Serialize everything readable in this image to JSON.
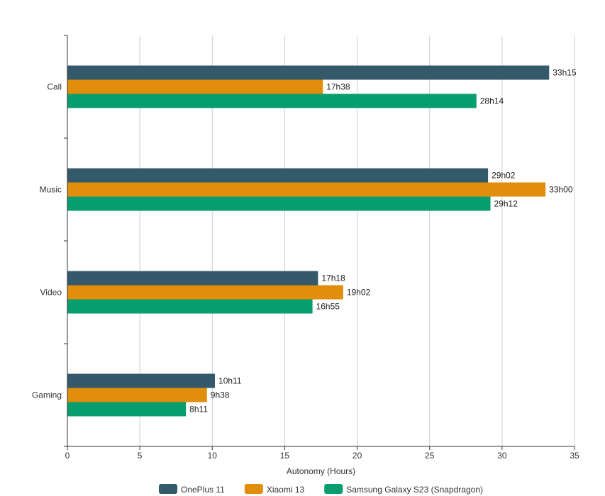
{
  "chart_data": {
    "type": "bar",
    "orientation": "horizontal",
    "categories": [
      "Call",
      "Music",
      "Video",
      "Gaming"
    ],
    "xlabel": "Autonomy (Hours)",
    "xlim": [
      0,
      35
    ],
    "xticks": [
      0,
      5,
      10,
      15,
      20,
      25,
      30,
      35
    ],
    "grid": true,
    "legend_position": "bottom",
    "series": [
      {
        "name": "OnePlus 11",
        "color": "#34596b",
        "values": [
          33.25,
          29.033,
          17.3,
          10.183
        ],
        "labels": [
          "33h15",
          "29h02",
          "17h18",
          "10h11"
        ]
      },
      {
        "name": "Xiaomi 13",
        "color": "#e08e0b",
        "values": [
          17.633,
          33.0,
          19.033,
          9.633
        ],
        "labels": [
          "17h38",
          "33h00",
          "19h02",
          "9h38"
        ]
      },
      {
        "name": "Samsung Galaxy S23 (Snapdragon)",
        "color": "#069d6f",
        "values": [
          28.233,
          29.2,
          16.917,
          8.183
        ],
        "labels": [
          "28h14",
          "29h12",
          "16h55",
          "8h11"
        ]
      }
    ]
  }
}
